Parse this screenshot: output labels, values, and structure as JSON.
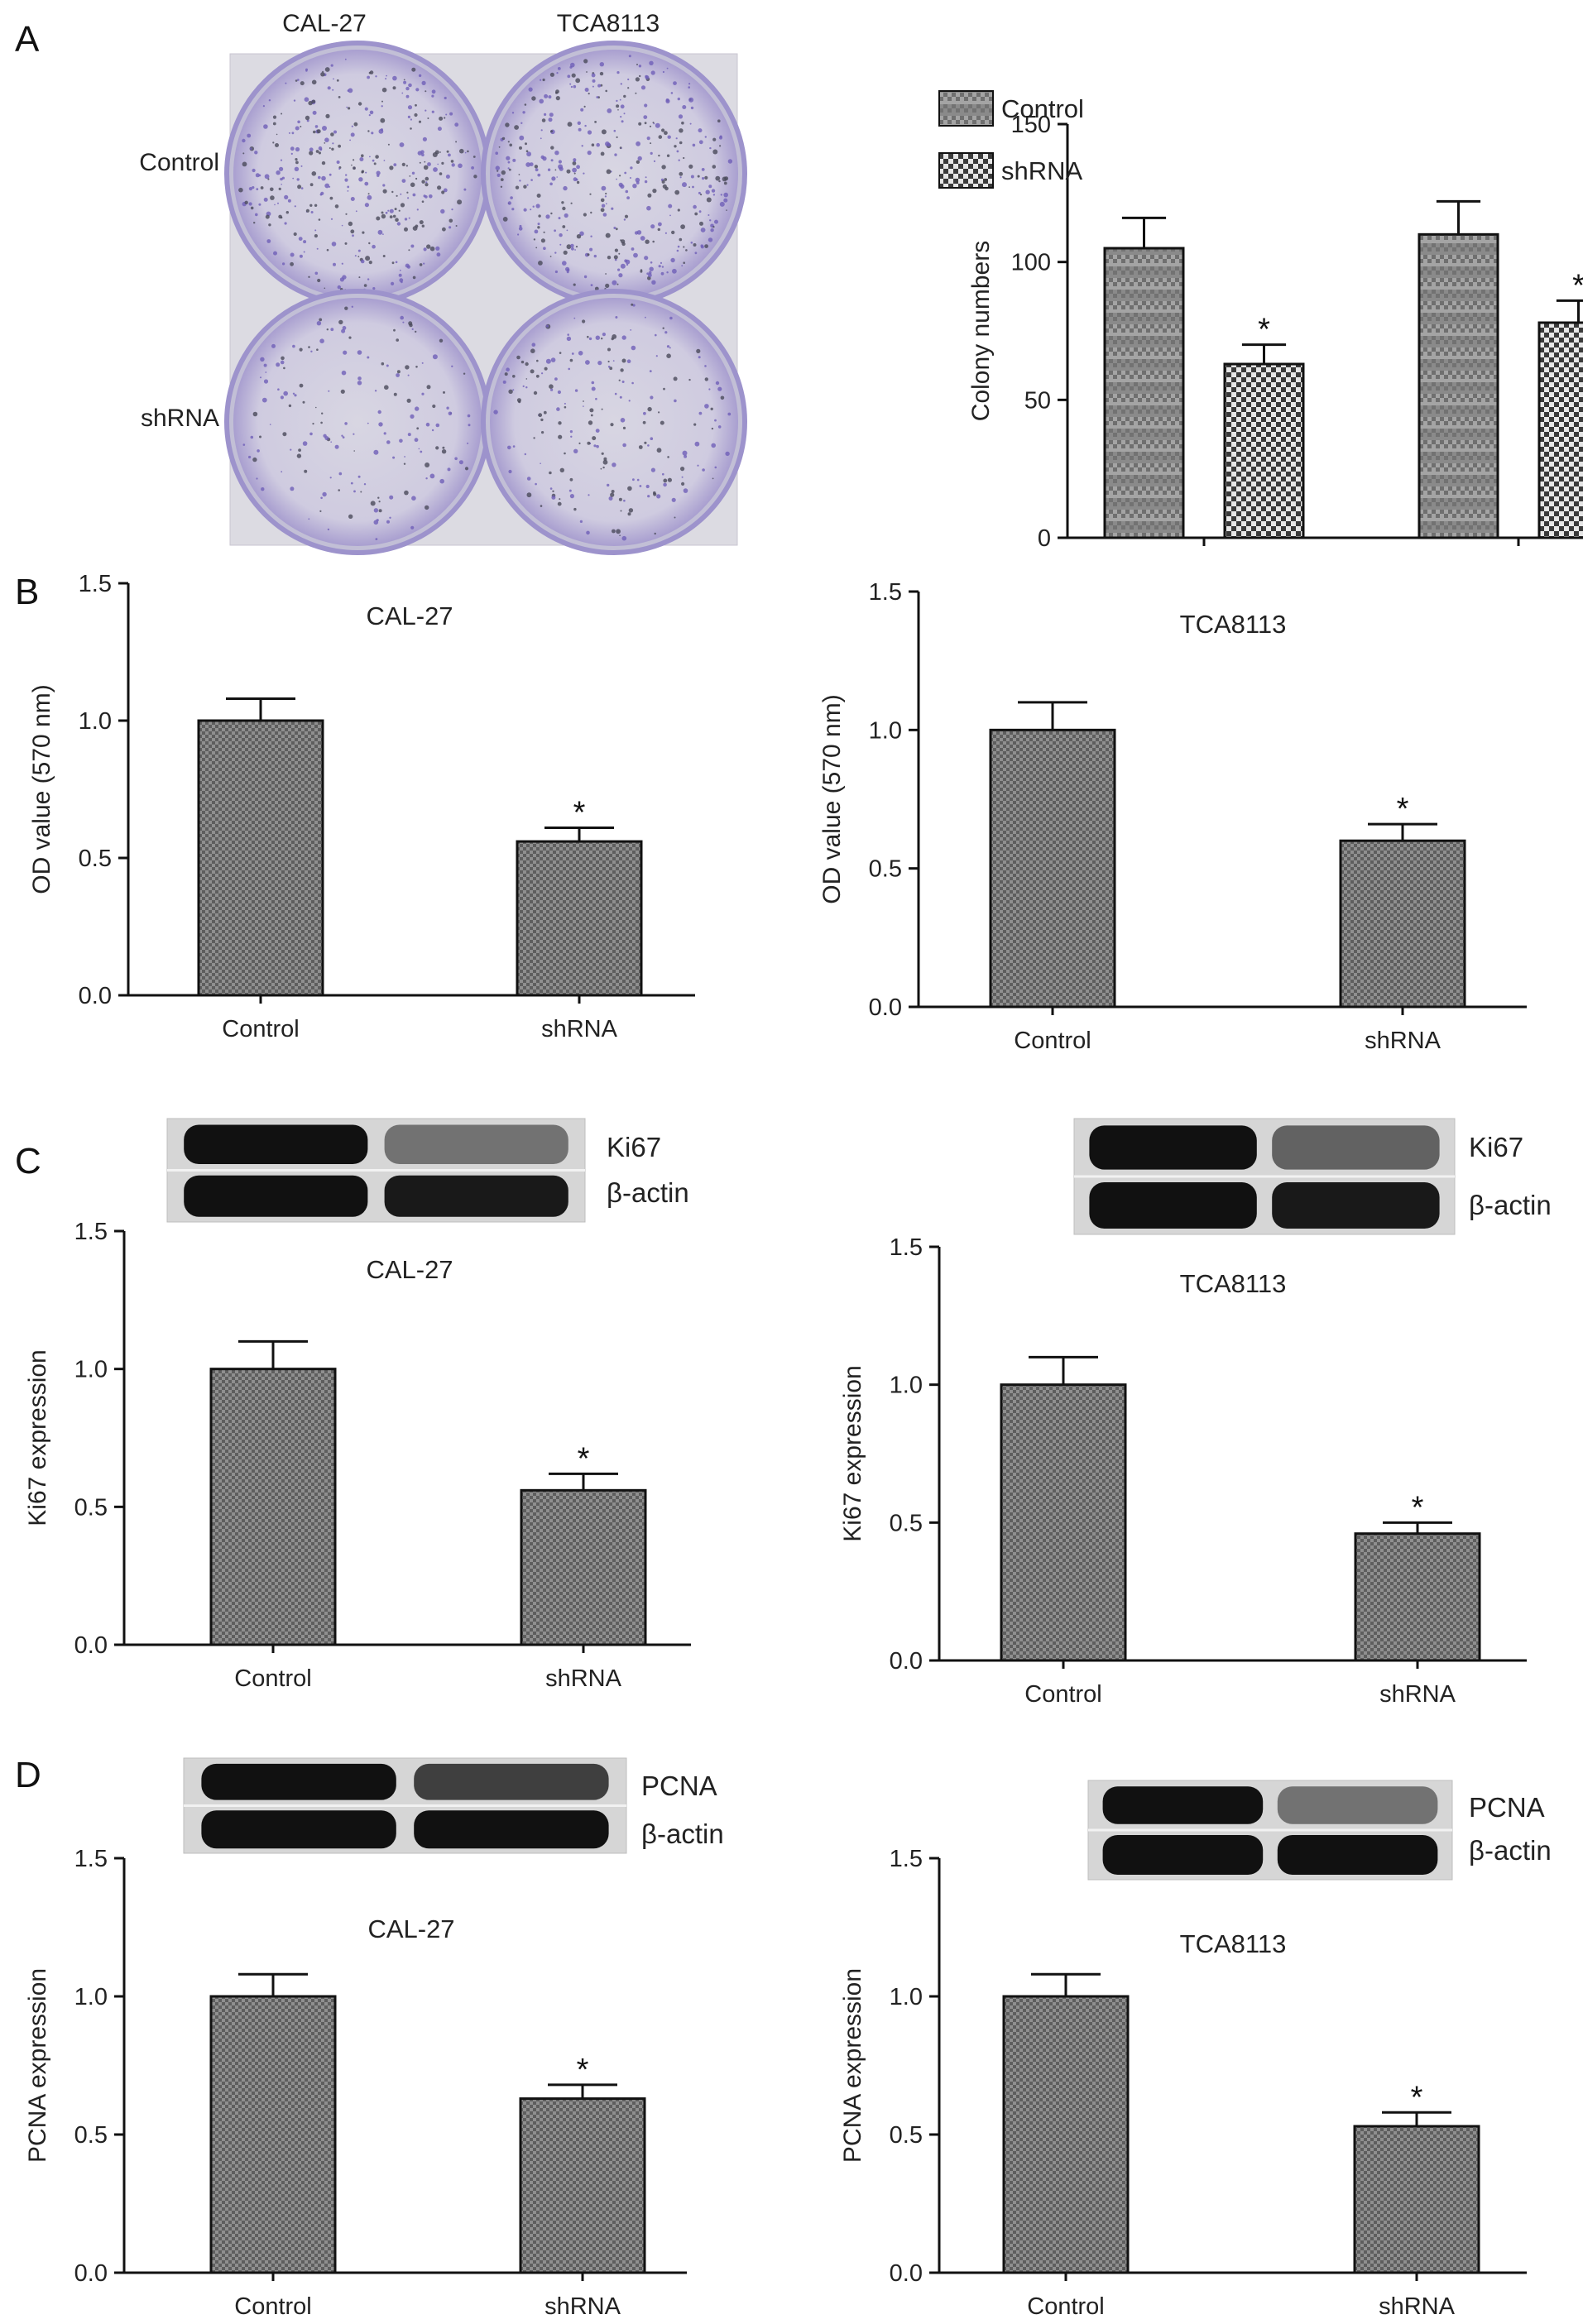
{
  "panel_letters": {
    "A": "A",
    "B": "B",
    "C": "C",
    "D": "D"
  },
  "photo": {
    "col_labels": [
      "CAL-27",
      "TCA8113"
    ],
    "row_labels": [
      "Control",
      "shRNA"
    ]
  },
  "colors": {
    "bar_fill": "#9a9a9a",
    "axis": "#111111",
    "membrane": "#d9d9d9",
    "band": "#1a1a1a",
    "plate_stain": "#8d7fc6"
  },
  "blots": {
    "C_left": {
      "target": "Ki67",
      "loading": "β-actin"
    },
    "C_right": {
      "target": "Ki67",
      "loading": "β-actin"
    },
    "D_left": {
      "target": "PCNA",
      "loading": "β-actin"
    },
    "D_right": {
      "target": "PCNA",
      "loading": "β-actin"
    }
  },
  "chart_data": [
    {
      "id": "A_colony",
      "type": "bar",
      "title": "",
      "ylabel": "Colony numbers",
      "xlabel": "",
      "ylim": [
        0,
        150
      ],
      "yticks": [
        0,
        50,
        100,
        150
      ],
      "groups": 2,
      "series": [
        {
          "name": "Control",
          "values": [
            105,
            110
          ],
          "errors": [
            11,
            12
          ],
          "stars": [
            false,
            false
          ],
          "pattern": "stripe"
        },
        {
          "name": "shRNA",
          "values": [
            63,
            78
          ],
          "errors": [
            7,
            8
          ],
          "stars": [
            true,
            true
          ],
          "pattern": "check"
        }
      ],
      "legend": "top-left"
    },
    {
      "id": "B_left",
      "type": "bar",
      "title": "CAL-27",
      "ylabel": "OD value (570 nm)",
      "xlabel": "",
      "ylim": [
        0,
        1.5
      ],
      "yticks": [
        "0.0",
        "0.5",
        "1.0",
        "1.5"
      ],
      "categories": [
        "Control",
        "shRNA"
      ],
      "values": [
        1.0,
        0.56
      ],
      "errors": [
        0.08,
        0.05
      ],
      "stars": [
        false,
        true
      ]
    },
    {
      "id": "B_right",
      "type": "bar",
      "title": "TCA8113",
      "ylabel": "OD value (570 nm)",
      "xlabel": "",
      "ylim": [
        0,
        1.5
      ],
      "yticks": [
        "0.0",
        "0.5",
        "1.0",
        "1.5"
      ],
      "categories": [
        "Control",
        "shRNA"
      ],
      "values": [
        1.0,
        0.6
      ],
      "errors": [
        0.1,
        0.06
      ],
      "stars": [
        false,
        true
      ]
    },
    {
      "id": "C_left",
      "type": "bar",
      "title": "CAL-27",
      "ylabel": "Ki67 expression",
      "xlabel": "",
      "ylim": [
        0,
        1.5
      ],
      "yticks": [
        "0.0",
        "0.5",
        "1.0",
        "1.5"
      ],
      "categories": [
        "Control",
        "shRNA"
      ],
      "values": [
        1.0,
        0.56
      ],
      "errors": [
        0.1,
        0.06
      ],
      "stars": [
        false,
        true
      ]
    },
    {
      "id": "C_right",
      "type": "bar",
      "title": "TCA8113",
      "ylabel": "Ki67 expression",
      "xlabel": "",
      "ylim": [
        0,
        1.5
      ],
      "yticks": [
        "0.0",
        "0.5",
        "1.0",
        "1.5"
      ],
      "categories": [
        "Control",
        "shRNA"
      ],
      "values": [
        1.0,
        0.46
      ],
      "errors": [
        0.1,
        0.04
      ],
      "stars": [
        false,
        true
      ]
    },
    {
      "id": "D_left",
      "type": "bar",
      "title": "CAL-27",
      "ylabel": "PCNA expression",
      "xlabel": "",
      "ylim": [
        0,
        1.5
      ],
      "yticks": [
        "0.0",
        "0.5",
        "1.0",
        "1.5"
      ],
      "categories": [
        "Control",
        "shRNA"
      ],
      "values": [
        1.0,
        0.63
      ],
      "errors": [
        0.08,
        0.05
      ],
      "stars": [
        false,
        true
      ]
    },
    {
      "id": "D_right",
      "type": "bar",
      "title": "TCA8113",
      "ylabel": "PCNA expression",
      "xlabel": "",
      "ylim": [
        0,
        1.5
      ],
      "yticks": [
        "0.0",
        "0.5",
        "1.0",
        "1.5"
      ],
      "categories": [
        "Control",
        "shRNA"
      ],
      "values": [
        1.0,
        0.53
      ],
      "errors": [
        0.08,
        0.05
      ],
      "stars": [
        false,
        true
      ]
    }
  ]
}
